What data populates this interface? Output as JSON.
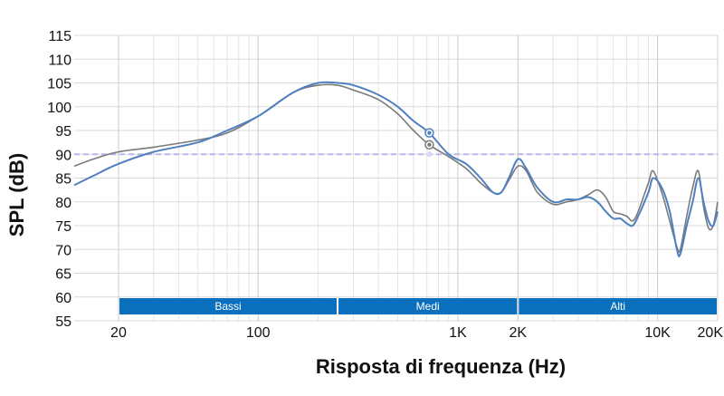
{
  "chart_data": {
    "type": "line",
    "xlabel": "Risposta di frequenza (Hz)",
    "ylabel": "SPL (dB)",
    "x_scale": "log",
    "xlim": [
      12,
      20000
    ],
    "ylim": [
      55,
      115
    ],
    "grid": true,
    "x_ticks": [
      {
        "value": 20,
        "label": "20"
      },
      {
        "value": 100,
        "label": "100"
      },
      {
        "value": 1000,
        "label": "1K"
      },
      {
        "value": 2000,
        "label": "2K"
      },
      {
        "value": 10000,
        "label": "10K"
      },
      {
        "value": 20000,
        "label": "20K"
      }
    ],
    "y_ticks": [
      "115",
      "110",
      "105",
      "100",
      "95",
      "90",
      "85",
      "80",
      "75",
      "70",
      "65",
      "60",
      "55"
    ],
    "reference_line": {
      "y": 90,
      "color": "#b8b8f0"
    },
    "bands": [
      {
        "label": "Bassi",
        "from": 20,
        "to": 250
      },
      {
        "label": "Medi",
        "from": 250,
        "to": 2000
      },
      {
        "label": "Alti",
        "from": 2000,
        "to": 20000
      }
    ],
    "band_color": "#0a6fbd",
    "series": [
      {
        "color": "#5080c0",
        "marker": {
          "x": 720,
          "y": 94.5
        },
        "points": [
          [
            12,
            83.5
          ],
          [
            15,
            85.5
          ],
          [
            20,
            88
          ],
          [
            30,
            90.5
          ],
          [
            50,
            92.5
          ],
          [
            70,
            95
          ],
          [
            100,
            98
          ],
          [
            150,
            103
          ],
          [
            200,
            105
          ],
          [
            250,
            105
          ],
          [
            300,
            104.5
          ],
          [
            400,
            102.5
          ],
          [
            500,
            100
          ],
          [
            600,
            97
          ],
          [
            720,
            94.5
          ],
          [
            900,
            90
          ],
          [
            1100,
            88
          ],
          [
            1300,
            85
          ],
          [
            1500,
            82
          ],
          [
            1650,
            82
          ],
          [
            1800,
            85
          ],
          [
            2000,
            89
          ],
          [
            2200,
            87
          ],
          [
            2500,
            83
          ],
          [
            3000,
            80
          ],
          [
            3500,
            80.5
          ],
          [
            4000,
            80.5
          ],
          [
            4500,
            81
          ],
          [
            5000,
            80
          ],
          [
            5500,
            78
          ],
          [
            6000,
            76.5
          ],
          [
            6500,
            76.5
          ],
          [
            7000,
            75.5
          ],
          [
            7500,
            75
          ],
          [
            8000,
            77
          ],
          [
            9000,
            82
          ],
          [
            9500,
            85
          ],
          [
            10500,
            83
          ],
          [
            11500,
            78
          ],
          [
            12500,
            70
          ],
          [
            13000,
            69
          ],
          [
            14000,
            75
          ],
          [
            15000,
            80
          ],
          [
            16000,
            85
          ],
          [
            17000,
            80
          ],
          [
            18000,
            76
          ],
          [
            19000,
            75
          ],
          [
            20000,
            78
          ],
          [
            21500,
            84
          ],
          [
            22500,
            84
          ],
          [
            23500,
            79
          ]
        ]
      },
      {
        "color": "#7a7a7a",
        "marker": {
          "x": 720,
          "y": 92
        },
        "points": [
          [
            12,
            87.5
          ],
          [
            15,
            89
          ],
          [
            20,
            90.5
          ],
          [
            30,
            91.5
          ],
          [
            50,
            93
          ],
          [
            70,
            94.5
          ],
          [
            100,
            98
          ],
          [
            150,
            103
          ],
          [
            200,
            104.5
          ],
          [
            250,
            104.5
          ],
          [
            300,
            103.5
          ],
          [
            400,
            101.5
          ],
          [
            500,
            98.5
          ],
          [
            600,
            95
          ],
          [
            720,
            92
          ],
          [
            900,
            89.5
          ],
          [
            1100,
            87
          ],
          [
            1300,
            84
          ],
          [
            1500,
            82
          ],
          [
            1650,
            82
          ],
          [
            1800,
            84.5
          ],
          [
            2000,
            87.5
          ],
          [
            2200,
            86.5
          ],
          [
            2500,
            82
          ],
          [
            3000,
            79.5
          ],
          [
            3500,
            80
          ],
          [
            4000,
            80.5
          ],
          [
            4500,
            81.5
          ],
          [
            5000,
            82.5
          ],
          [
            5500,
            81
          ],
          [
            6000,
            78
          ],
          [
            6500,
            77.5
          ],
          [
            7000,
            77
          ],
          [
            7500,
            76
          ],
          [
            8000,
            78
          ],
          [
            9000,
            84
          ],
          [
            9500,
            86.5
          ],
          [
            10500,
            82
          ],
          [
            11500,
            76
          ],
          [
            12500,
            70.5
          ],
          [
            13000,
            70
          ],
          [
            14000,
            77
          ],
          [
            15000,
            83
          ],
          [
            16000,
            86.5
          ],
          [
            17000,
            79
          ],
          [
            18000,
            74.5
          ],
          [
            19000,
            75
          ],
          [
            20000,
            80
          ],
          [
            21500,
            84.5
          ],
          [
            22500,
            80
          ],
          [
            23500,
            73.5
          ]
        ]
      }
    ]
  }
}
